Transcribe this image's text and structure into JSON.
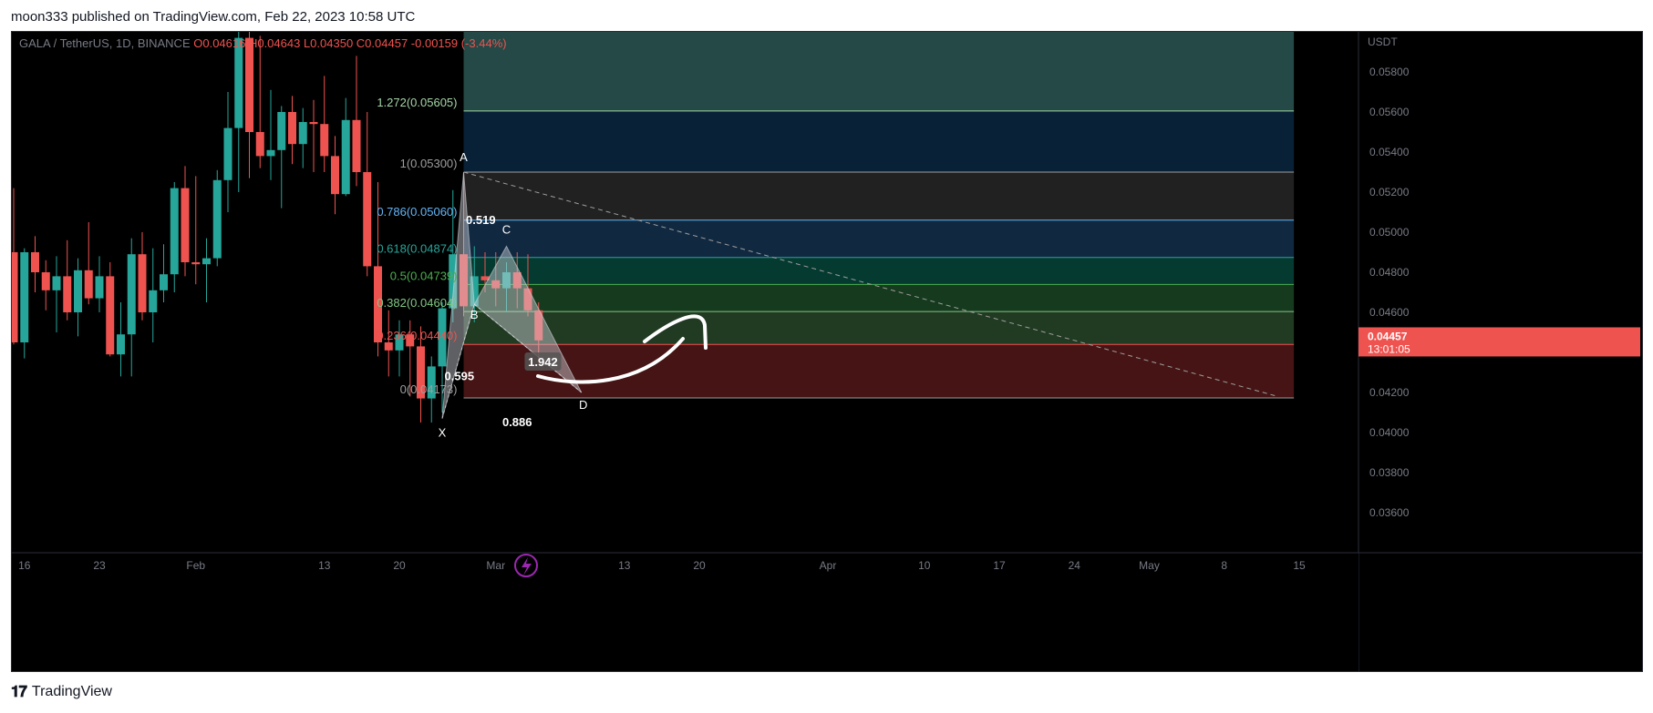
{
  "header": {
    "publisher_line": "moon333 published on TradingView.com, Feb 22, 2023 10:58 UTC"
  },
  "footer": {
    "brand": "TradingView"
  },
  "colors": {
    "up": "#26a69a",
    "down": "#ef5350",
    "background": "#000000",
    "price_tag": "#ef5350",
    "pattern_fill": "#d1d4dc"
  },
  "chart_data": {
    "type": "candlestick",
    "symbol_line": {
      "symbol": "GALA / TetherUS, 1D, BINANCE",
      "open": "O0.04616",
      "high": "H0.04643",
      "low": "L0.04350",
      "close": "C0.04457",
      "change": "-0.00159 (-3.44%)"
    },
    "y_axis": {
      "currency": "USDT",
      "ylim": [
        0.034,
        0.06
      ],
      "ticks": [
        "0.05800",
        "0.05600",
        "0.05400",
        "0.05200",
        "0.05000",
        "0.04800",
        "0.04600",
        "0.04400",
        "0.04200",
        "0.04000",
        "0.03800",
        "0.03600"
      ]
    },
    "x_axis": {
      "ticks": [
        {
          "label": "16",
          "idx": 1
        },
        {
          "label": "23",
          "idx": 8
        },
        {
          "label": "Feb",
          "idx": 17
        },
        {
          "label": "13",
          "idx": 29
        },
        {
          "label": "20",
          "idx": 36
        },
        {
          "label": "Mar",
          "idx": 45
        },
        {
          "label": "13",
          "idx": 57
        },
        {
          "label": "20",
          "idx": 64
        },
        {
          "label": "Apr",
          "idx": 76
        },
        {
          "label": "10",
          "idx": 85
        },
        {
          "label": "17",
          "idx": 92
        },
        {
          "label": "24",
          "idx": 99
        },
        {
          "label": "May",
          "idx": 106
        },
        {
          "label": "8",
          "idx": 113
        },
        {
          "label": "15",
          "idx": 120
        }
      ]
    },
    "candles": [
      [
        0.049,
        0.0522,
        0.0444,
        0.0445
      ],
      [
        0.0445,
        0.0492,
        0.0437,
        0.049
      ],
      [
        0.049,
        0.0498,
        0.047,
        0.048
      ],
      [
        0.048,
        0.0486,
        0.0461,
        0.0471
      ],
      [
        0.0471,
        0.0488,
        0.045,
        0.0478
      ],
      [
        0.0478,
        0.0496,
        0.0456,
        0.046
      ],
      [
        0.046,
        0.0487,
        0.0448,
        0.0481
      ],
      [
        0.0481,
        0.0505,
        0.0464,
        0.0467
      ],
      [
        0.0467,
        0.0488,
        0.046,
        0.0478
      ],
      [
        0.0478,
        0.0485,
        0.0438,
        0.0439
      ],
      [
        0.0439,
        0.0465,
        0.0428,
        0.0449
      ],
      [
        0.0449,
        0.0497,
        0.0428,
        0.0489
      ],
      [
        0.0489,
        0.05,
        0.0456,
        0.046
      ],
      [
        0.046,
        0.0492,
        0.0445,
        0.0471
      ],
      [
        0.0471,
        0.0494,
        0.0465,
        0.0479
      ],
      [
        0.0479,
        0.0525,
        0.047,
        0.0522
      ],
      [
        0.0522,
        0.0533,
        0.0478,
        0.0485
      ],
      [
        0.0485,
        0.0528,
        0.0474,
        0.0484
      ],
      [
        0.0484,
        0.0497,
        0.0465,
        0.0487
      ],
      [
        0.0487,
        0.0531,
        0.0483,
        0.0526
      ],
      [
        0.0526,
        0.057,
        0.051,
        0.0552
      ],
      [
        0.0552,
        0.06,
        0.052,
        0.0597
      ],
      [
        0.0597,
        0.06,
        0.0527,
        0.055
      ],
      [
        0.055,
        0.0598,
        0.0532,
        0.0538
      ],
      [
        0.0538,
        0.0571,
        0.0526,
        0.0541
      ],
      [
        0.0541,
        0.0563,
        0.0512,
        0.056
      ],
      [
        0.056,
        0.0568,
        0.0534,
        0.0544
      ],
      [
        0.0544,
        0.0562,
        0.0532,
        0.0555
      ],
      [
        0.0555,
        0.0566,
        0.053,
        0.0554
      ],
      [
        0.0554,
        0.0578,
        0.053,
        0.0538
      ],
      [
        0.0538,
        0.0548,
        0.0509,
        0.0519
      ],
      [
        0.0519,
        0.0567,
        0.0518,
        0.0556
      ],
      [
        0.0556,
        0.0588,
        0.0523,
        0.053
      ],
      [
        0.053,
        0.056,
        0.0478,
        0.0483
      ],
      [
        0.0483,
        0.0525,
        0.0438,
        0.0445
      ],
      [
        0.0445,
        0.0461,
        0.0428,
        0.0441
      ],
      [
        0.0441,
        0.0456,
        0.0428,
        0.0449
      ],
      [
        0.0449,
        0.0456,
        0.0418,
        0.0443
      ],
      [
        0.0443,
        0.0453,
        0.0405,
        0.0417
      ],
      [
        0.0417,
        0.0438,
        0.0405,
        0.0433
      ],
      [
        0.0433,
        0.0465,
        0.041,
        0.0462
      ],
      [
        0.0462,
        0.0521,
        0.0455,
        0.0489
      ],
      [
        0.0489,
        0.053,
        0.0458,
        0.0463
      ],
      [
        0.0463,
        0.0493,
        0.0455,
        0.0478
      ],
      [
        0.0478,
        0.049,
        0.047,
        0.0476
      ],
      [
        0.0476,
        0.049,
        0.0463,
        0.0472
      ],
      [
        0.0472,
        0.0485,
        0.046,
        0.048
      ],
      [
        0.048,
        0.049,
        0.0462,
        0.0472
      ],
      [
        0.0472,
        0.0489,
        0.0458,
        0.0461
      ],
      [
        0.0461,
        0.0465,
        0.0435,
        0.0446
      ]
    ],
    "fib_levels": [
      {
        "label": "1.272(0.05605)",
        "price": 0.05605,
        "color": "#a5d6a7"
      },
      {
        "label": "1(0.05300)",
        "price": 0.053,
        "color": "#9e9e9e"
      },
      {
        "label": "0.786(0.05060)",
        "price": 0.0506,
        "color": "#64b5f6"
      },
      {
        "label": "0.618(0.04874)",
        "price": 0.04874,
        "color": "#26a69a"
      },
      {
        "label": "0.5(0.04739)",
        "price": 0.04739,
        "color": "#4caf50"
      },
      {
        "label": "0.382(0.04604)",
        "price": 0.04604,
        "color": "#81c784"
      },
      {
        "label": "0.236(0.04440)",
        "price": 0.0444,
        "color": "#ef5350"
      },
      {
        "label": "0(0.04173)",
        "price": 0.04173,
        "color": "#9e9e9e"
      }
    ],
    "fib_top_price": 0.06,
    "harmonic_pattern": {
      "points": [
        {
          "name": "X",
          "idx": 40,
          "price": 0.0407
        },
        {
          "name": "A",
          "idx": 42,
          "price": 0.053
        },
        {
          "name": "B",
          "idx": 43,
          "price": 0.0464
        },
        {
          "name": "C",
          "idx": 46,
          "price": 0.0493
        },
        {
          "name": "D",
          "idx": 53,
          "price": 0.042
        }
      ],
      "ratios": [
        {
          "text": "0.519",
          "idx": 43.6,
          "price": 0.0506
        },
        {
          "text": "0.595",
          "idx": 41.6,
          "price": 0.0428
        },
        {
          "text": "1.942",
          "idx": 49.4,
          "price": 0.0435
        },
        {
          "text": "0.886",
          "idx": 47.0,
          "price": 0.0405
        }
      ]
    },
    "trend_line": {
      "start_idx": 42,
      "start_price": 0.053,
      "end_idx": 118,
      "end_price": 0.0418
    },
    "last_price": {
      "value": "0.04457",
      "countdown": "13:01:05",
      "price": 0.04457
    }
  }
}
